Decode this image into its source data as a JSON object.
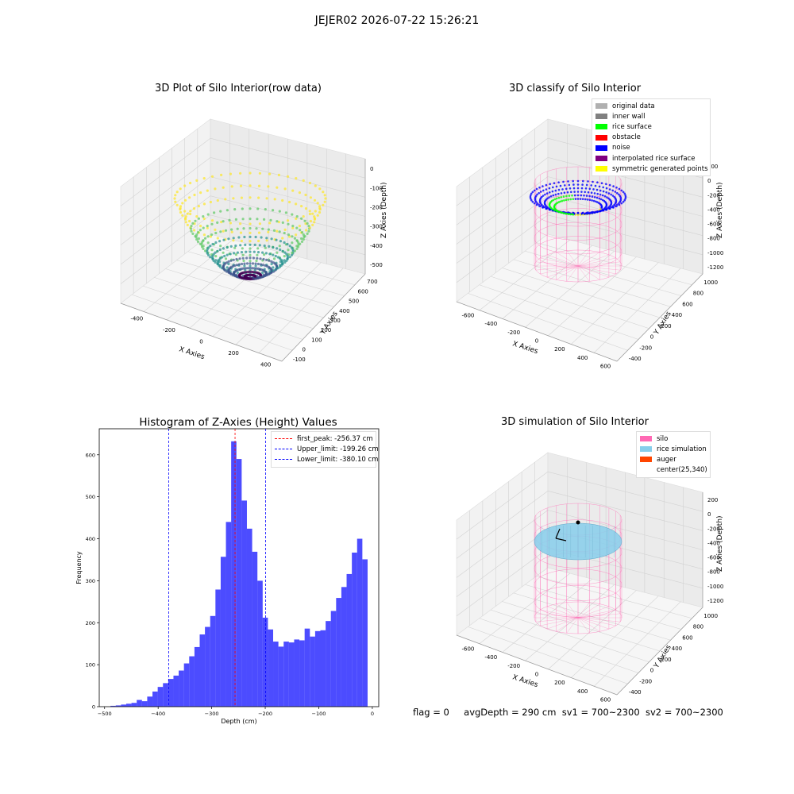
{
  "figure": {
    "suptitle": "JEJER02 2026-07-22 15:26:21",
    "footer": {
      "flag": "flag = 0",
      "avg_depth": "avgDepth = 290 cm",
      "sv1": "sv1 = 700~2300",
      "sv2": "sv2 = 700~2300"
    }
  },
  "panels": {
    "raw": {
      "title": "3D Plot of Silo Interior(row data)",
      "xlabel": "X Axies",
      "ylabel": "Y Axies",
      "zlabel": "Z Axies (Depth)",
      "xticks": [
        "-400",
        "-200",
        "0",
        "200",
        "400"
      ],
      "yticks": [
        "-100",
        "0",
        "100",
        "200",
        "300",
        "400",
        "500",
        "600",
        "700"
      ],
      "zticks": [
        "0",
        "-100",
        "-200",
        "-300",
        "-400",
        "-500"
      ]
    },
    "classify": {
      "title": "3D classify of Silo Interior",
      "xlabel": "X Axies",
      "ylabel": "Y Axies",
      "zlabel": "Z Axies (Depth)",
      "xticks": [
        "-600",
        "-400",
        "-200",
        "0",
        "200",
        "400",
        "600"
      ],
      "yticks": [
        "-400",
        "-200",
        "0",
        "200",
        "400",
        "600",
        "800",
        "1000"
      ],
      "zticks": [
        "200",
        "0",
        "-200",
        "-400",
        "-600",
        "-800",
        "-1000",
        "-1200"
      ],
      "legend": [
        {
          "label": "original data",
          "color": "#b0b0b0"
        },
        {
          "label": "inner wall",
          "color": "#808080"
        },
        {
          "label": "rice surface",
          "color": "#00ff00"
        },
        {
          "label": "obstacle",
          "color": "#ff0000"
        },
        {
          "label": "noise",
          "color": "#0000ff"
        },
        {
          "label": "interpolated rice surface",
          "color": "#800080"
        },
        {
          "label": "symmetric generated points",
          "color": "#ffff00"
        }
      ]
    },
    "simulation": {
      "title": "3D simulation of Silo Interior",
      "xlabel": "X Axies",
      "ylabel": "Y Axies",
      "zlabel": "Z Axies (Depth)",
      "xticks": [
        "-600",
        "-400",
        "-200",
        "0",
        "200",
        "400",
        "600"
      ],
      "yticks": [
        "-400",
        "-200",
        "0",
        "200",
        "400",
        "600",
        "800",
        "1000"
      ],
      "zticks": [
        "200",
        "0",
        "-200",
        "-400",
        "-600",
        "-800",
        "-1000",
        "-1200"
      ],
      "legend": [
        {
          "label": "silo",
          "color": "#ff69b4"
        },
        {
          "label": "rice simulation",
          "color": "#87ceeb"
        },
        {
          "label": "auger",
          "color": "#ff4500"
        },
        {
          "label": "center(25,340)",
          "color": ""
        }
      ]
    }
  },
  "chart_data": [
    {
      "type": "bar",
      "title": "Histogram of Z-Axies (Height) Values",
      "xlabel": "Depth (cm)",
      "ylabel": "Frequency",
      "xlim": [
        -510,
        12
      ],
      "ylim": [
        0,
        662
      ],
      "xticks": [
        -500,
        -400,
        -300,
        -200,
        -100,
        0
      ],
      "yticks": [
        0,
        100,
        200,
        300,
        400,
        500,
        600
      ],
      "bar_color": "#0000ff",
      "bin_width": 9.8,
      "bin_start": -489,
      "values": [
        2,
        3,
        5,
        7,
        9,
        16,
        13,
        24,
        36,
        47,
        56,
        66,
        74,
        86,
        103,
        120,
        142,
        172,
        190,
        216,
        279,
        357,
        440,
        632,
        590,
        491,
        424,
        369,
        300,
        212,
        184,
        155,
        143,
        155,
        153,
        160,
        158,
        186,
        167,
        180,
        182,
        204,
        228,
        259,
        285,
        316,
        367,
        400,
        351
      ],
      "vlines": [
        {
          "label": "first_peak: -256.37 cm",
          "x": -256.37,
          "color": "#ff0000"
        },
        {
          "label": "Upper_limit: -199.26 cm",
          "x": -199.26,
          "color": "#0000ff"
        },
        {
          "label": "Lower_limit: -380.10 cm",
          "x": -380.1,
          "color": "#0000ff"
        }
      ],
      "legend_position": "top-right"
    }
  ]
}
